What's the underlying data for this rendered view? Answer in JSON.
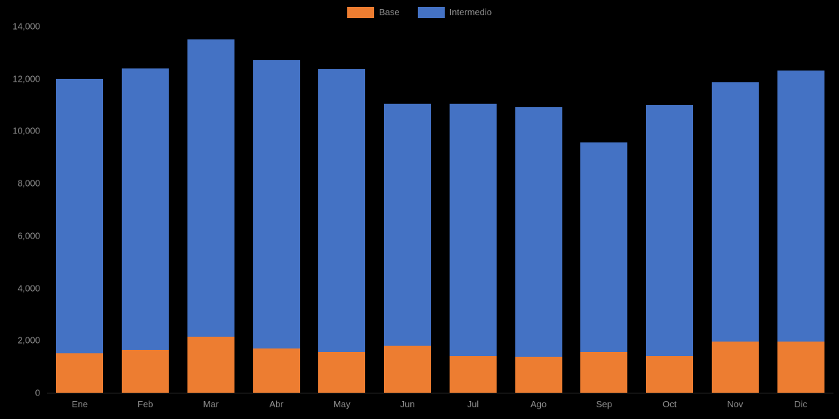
{
  "chart_data": {
    "type": "bar",
    "stacked": true,
    "title": "",
    "xlabel": "",
    "ylabel": "",
    "categories": [
      "Ene",
      "Feb",
      "Mar",
      "Abr",
      "May",
      "Jun",
      "Jul",
      "Ago",
      "Sep",
      "Oct",
      "Nov",
      "Dic"
    ],
    "series": [
      {
        "name": "Base",
        "color": "#ED7D31",
        "values": [
          1500,
          1650,
          2150,
          1700,
          1550,
          1800,
          1400,
          1380,
          1550,
          1400,
          1950,
          1950
        ]
      },
      {
        "name": "Intermedio",
        "color": "#4472C4",
        "values": [
          10500,
          10750,
          11350,
          11000,
          10800,
          9250,
          9650,
          9520,
          8000,
          9600,
          9900,
          10350
        ]
      }
    ],
    "totals": [
      12000,
      12400,
      13500,
      12700,
      12350,
      11050,
      11050,
      10900,
      9550,
      11000,
      11850,
      12300
    ],
    "ylim": [
      0,
      14000
    ],
    "yticks": [
      0,
      2000,
      4000,
      6000,
      8000,
      10000,
      12000,
      14000
    ],
    "ytick_labels": [
      "0",
      "2,000",
      "4,000",
      "6,000",
      "8,000",
      "10,000",
      "12,000",
      "14,000"
    ],
    "legend_position": "top-center",
    "grid": false,
    "background_color": "#000000",
    "axis_label_color": "#8f8f8f"
  }
}
